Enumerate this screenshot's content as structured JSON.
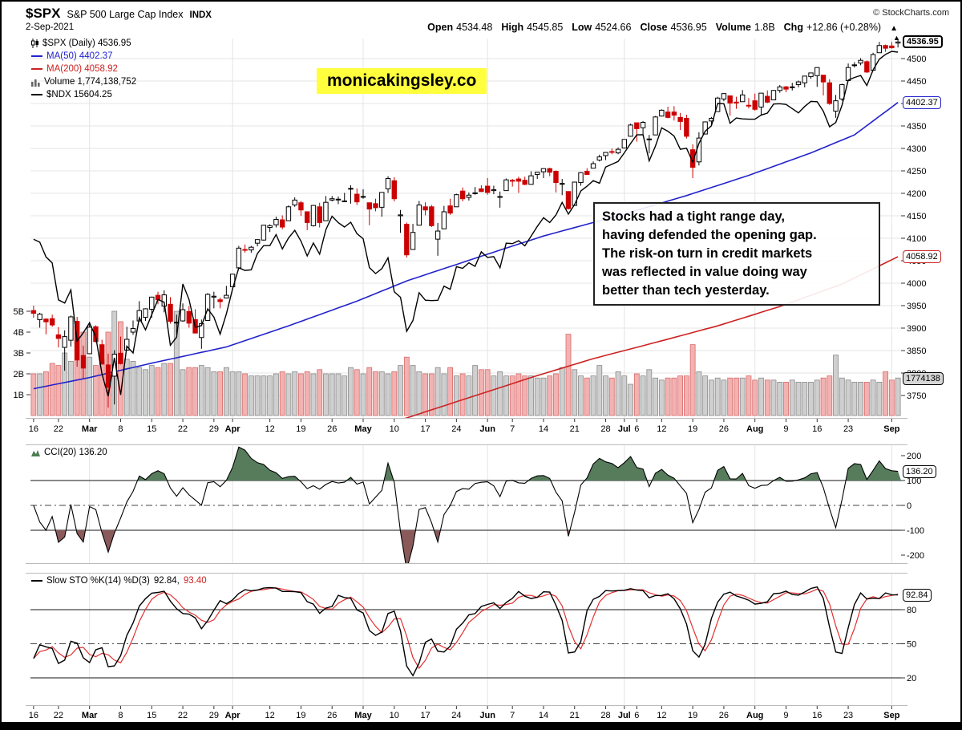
{
  "header": {
    "symbol": "$SPX",
    "symbol_name": "S&P 500 Large Cap Index",
    "exchange": "INDX",
    "copyright": "© StockCharts.com",
    "date": "2-Sep-2021",
    "quote": {
      "open_label": "Open",
      "open": "4534.48",
      "high_label": "High",
      "high": "4545.85",
      "low_label": "Low",
      "low": "4524.66",
      "close_label": "Close",
      "close": "4536.95",
      "volume_label": "Volume",
      "volume": "1.8B",
      "chg_label": "Chg",
      "chg": "+12.86 (+0.28%)",
      "chg_arrow": "▲"
    }
  },
  "watermark": "monicakingsley.co",
  "annotation": {
    "lines": [
      "Stocks had a tight range day,",
      "having defended the opening gap.",
      "The risk-on turn in credit markets",
      "was reflected in value doing way",
      "better than tech yesterday."
    ]
  },
  "main_legend": {
    "spx": "$SPX (Daily) 4536.95",
    "ma50": "MA(50) 4402.37",
    "ma200": "MA(200) 4058.92",
    "volume": "Volume 1,774,138,752",
    "ndx": "$NDX 15604.25"
  },
  "cci_legend": "CCI(20) 136.20",
  "sto_legend": {
    "name": "Slow STO %K(14) %D(3)",
    "k": "92.84,",
    "d": "93.40"
  },
  "price_boxes": {
    "last": "4536.95",
    "ma50": "4402.37",
    "ma200": "4058.92",
    "volume": "1774138",
    "cci": "136.20",
    "sto": "92.84",
    "axis_arrow": "▲"
  },
  "colors": {
    "candle_up_fill": "#ffffff",
    "candle_up_stroke": "#000000",
    "candle_down": "#cc0000",
    "ma50": "#2222cc",
    "ma200": "#cc2222",
    "ndx_line": "#000000",
    "volume_up_fill": "#cfcfcf",
    "volume_up_stroke": "#8a8a8a",
    "volume_down_fill": "#f2b2b2",
    "volume_down_stroke": "#d96a6a",
    "cci_fill_high": "#567c5c",
    "cci_fill_low": "#8a5a5a",
    "cci_line": "#000000",
    "sto_k": "#000000",
    "sto_d": "#e03030",
    "grid": "#e4e4e4",
    "guide": "#444444",
    "watermark_bg": "#ffff3d"
  },
  "chart_data": {
    "type": "candlestick",
    "symbol": "$SPX",
    "timeframe": "Daily",
    "date_range": "16-Feb-2021 to 2-Sep-2021",
    "price_axis_range": [
      3700,
      4546
    ],
    "price_ticks": [
      4500,
      4450,
      4400,
      4350,
      4300,
      4250,
      4200,
      4150,
      4100,
      4050,
      4000,
      3950,
      3900,
      3850,
      3800,
      3750
    ],
    "volume_ticks": [
      5,
      4,
      3,
      2,
      1
    ],
    "cci_ticks": [
      200,
      100,
      0,
      -100,
      -200
    ],
    "cci_lines": {
      "solid": [
        100,
        -100
      ],
      "dashdot": [
        0
      ]
    },
    "sto_ticks": [
      80,
      50,
      20
    ],
    "sto_lines": {
      "solid": [
        80,
        20
      ],
      "dashdot": [
        50
      ]
    },
    "x_ticks": [
      {
        "i": 0,
        "label": "16",
        "bold": false
      },
      {
        "i": 4,
        "label": "22",
        "bold": false
      },
      {
        "i": 9,
        "label": "Mar",
        "bold": true
      },
      {
        "i": 14,
        "label": "8",
        "bold": false
      },
      {
        "i": 19,
        "label": "15",
        "bold": false
      },
      {
        "i": 24,
        "label": "22",
        "bold": false
      },
      {
        "i": 29,
        "label": "29",
        "bold": false
      },
      {
        "i": 32,
        "label": "Apr",
        "bold": true
      },
      {
        "i": 38,
        "label": "12",
        "bold": false
      },
      {
        "i": 43,
        "label": "19",
        "bold": false
      },
      {
        "i": 48,
        "label": "26",
        "bold": false
      },
      {
        "i": 53,
        "label": "May",
        "bold": true
      },
      {
        "i": 58,
        "label": "10",
        "bold": false
      },
      {
        "i": 63,
        "label": "17",
        "bold": false
      },
      {
        "i": 68,
        "label": "24",
        "bold": false
      },
      {
        "i": 73,
        "label": "Jun",
        "bold": true
      },
      {
        "i": 77,
        "label": "7",
        "bold": false
      },
      {
        "i": 82,
        "label": "14",
        "bold": false
      },
      {
        "i": 87,
        "label": "21",
        "bold": false
      },
      {
        "i": 92,
        "label": "28",
        "bold": false
      },
      {
        "i": 95,
        "label": "Jul",
        "bold": true
      },
      {
        "i": 97,
        "label": "6",
        "bold": false
      },
      {
        "i": 101,
        "label": "12",
        "bold": false
      },
      {
        "i": 106,
        "label": "19",
        "bold": false
      },
      {
        "i": 111,
        "label": "26",
        "bold": false
      },
      {
        "i": 116,
        "label": "Aug",
        "bold": true
      },
      {
        "i": 121,
        "label": "9",
        "bold": false
      },
      {
        "i": 126,
        "label": "16",
        "bold": false
      },
      {
        "i": 131,
        "label": "23",
        "bold": false
      },
      {
        "i": 138,
        "label": "Sep",
        "bold": true
      }
    ],
    "ohlc": [
      [
        3939,
        3950,
        3923,
        3933
      ],
      [
        3919,
        3934,
        3901,
        3931
      ],
      [
        3920,
        3922,
        3886,
        3914
      ],
      [
        3921,
        3930,
        3903,
        3907
      ],
      [
        3885,
        3902,
        3857,
        3877
      ],
      [
        3857,
        3895,
        3805,
        3881
      ],
      [
        3873,
        3928,
        3859,
        3925
      ],
      [
        3915,
        3925,
        3814,
        3829
      ],
      [
        3839,
        3861,
        3789,
        3811
      ],
      [
        3843,
        3914,
        3843,
        3902
      ],
      [
        3903,
        3906,
        3868,
        3870
      ],
      [
        3863,
        3874,
        3819,
        3820
      ],
      [
        3818,
        3843,
        3723,
        3768
      ],
      [
        3793,
        3851,
        3730,
        3842
      ],
      [
        3844,
        3881,
        3819,
        3821
      ],
      [
        3851,
        3903,
        3851,
        3875
      ],
      [
        3891,
        3917,
        3885,
        3899
      ],
      [
        3916,
        3960,
        3915,
        3939
      ],
      [
        3924,
        3944,
        3916,
        3943
      ],
      [
        3942,
        3970,
        3923,
        3969
      ],
      [
        3973,
        3981,
        3953,
        3963
      ],
      [
        3949,
        3984,
        3935,
        3974
      ],
      [
        3953,
        3969,
        3910,
        3915
      ],
      [
        3913,
        3930,
        3886,
        3913
      ],
      [
        3916,
        3955,
        3914,
        3941
      ],
      [
        3937,
        3949,
        3901,
        3911
      ],
      [
        3919,
        3942,
        3889,
        3889
      ],
      [
        3879,
        3919,
        3854,
        3910
      ],
      [
        3917,
        3978,
        3917,
        3975
      ],
      [
        3969,
        3981,
        3944,
        3971
      ],
      [
        3963,
        3968,
        3944,
        3959
      ],
      [
        3967,
        3994,
        3967,
        3973
      ],
      [
        3992,
        4020,
        3992,
        4020
      ],
      [
        4034,
        4083,
        4034,
        4078
      ],
      [
        4075,
        4086,
        4068,
        4074
      ],
      [
        4074,
        4083,
        4068,
        4080
      ],
      [
        4089,
        4098,
        4082,
        4097
      ],
      [
        4096,
        4129,
        4095,
        4129
      ],
      [
        4124,
        4131,
        4114,
        4128
      ],
      [
        4130,
        4148,
        4124,
        4142
      ],
      [
        4141,
        4151,
        4120,
        4125
      ],
      [
        4139,
        4173,
        4139,
        4170
      ],
      [
        4174,
        4191,
        4170,
        4185
      ],
      [
        4179,
        4183,
        4150,
        4163
      ],
      [
        4159,
        4159,
        4118,
        4135
      ],
      [
        4128,
        4174,
        4126,
        4173
      ],
      [
        4170,
        4179,
        4124,
        4135
      ],
      [
        4139,
        4194,
        4139,
        4180
      ],
      [
        4185,
        4194,
        4182,
        4188
      ],
      [
        4186,
        4193,
        4176,
        4187
      ],
      [
        4183,
        4201,
        4181,
        4183
      ],
      [
        4211,
        4218,
        4177,
        4211
      ],
      [
        4198,
        4211,
        4174,
        4181
      ],
      [
        4192,
        4209,
        4188,
        4193
      ],
      [
        4179,
        4179,
        4129,
        4165
      ],
      [
        4177,
        4188,
        4160,
        4168
      ],
      [
        4169,
        4202,
        4148,
        4202
      ],
      [
        4210,
        4238,
        4201,
        4233
      ],
      [
        4228,
        4236,
        4182,
        4188
      ],
      [
        4150,
        4163,
        4112,
        4152
      ],
      [
        4131,
        4135,
        4057,
        4063
      ],
      [
        4075,
        4132,
        4075,
        4113
      ],
      [
        4129,
        4183,
        4129,
        4174
      ],
      [
        4170,
        4180,
        4151,
        4163
      ],
      [
        4170,
        4174,
        4125,
        4128
      ],
      [
        4098,
        4134,
        4061,
        4116
      ],
      [
        4121,
        4172,
        4121,
        4159
      ],
      [
        4172,
        4188,
        4152,
        4156
      ],
      [
        4170,
        4199,
        4170,
        4197
      ],
      [
        4205,
        4213,
        4182,
        4188
      ],
      [
        4191,
        4202,
        4184,
        4196
      ],
      [
        4201,
        4214,
        4197,
        4201
      ],
      [
        4210,
        4218,
        4203,
        4204
      ],
      [
        4216,
        4234,
        4197,
        4202
      ],
      [
        4206,
        4217,
        4198,
        4208
      ],
      [
        4191,
        4204,
        4168,
        4193
      ],
      [
        4206,
        4233,
        4206,
        4230
      ],
      [
        4229,
        4232,
        4215,
        4227
      ],
      [
        4232,
        4237,
        4201,
        4227
      ],
      [
        4229,
        4237,
        4218,
        4220
      ],
      [
        4220,
        4249,
        4220,
        4239
      ],
      [
        4242,
        4248,
        4232,
        4247
      ],
      [
        4248,
        4255,
        4234,
        4255
      ],
      [
        4255,
        4257,
        4238,
        4247
      ],
      [
        4249,
        4251,
        4202,
        4224
      ],
      [
        4221,
        4232,
        4196,
        4222
      ],
      [
        4204,
        4204,
        4164,
        4166
      ],
      [
        4173,
        4226,
        4173,
        4225
      ],
      [
        4224,
        4247,
        4217,
        4246
      ],
      [
        4249,
        4256,
        4241,
        4242
      ],
      [
        4256,
        4271,
        4256,
        4266
      ],
      [
        4274,
        4286,
        4271,
        4281
      ],
      [
        4284,
        4292,
        4274,
        4291
      ],
      [
        4293,
        4300,
        4287,
        4292
      ],
      [
        4290,
        4302,
        4287,
        4298
      ],
      [
        4301,
        4320,
        4300,
        4320
      ],
      [
        4327,
        4355,
        4326,
        4352
      ],
      [
        4357,
        4357,
        4315,
        4344
      ],
      [
        4346,
        4361,
        4329,
        4358
      ],
      [
        4321,
        4330,
        4289,
        4321
      ],
      [
        4330,
        4372,
        4330,
        4370
      ],
      [
        4372,
        4387,
        4371,
        4385
      ],
      [
        4381,
        4393,
        4367,
        4369
      ],
      [
        4381,
        4394,
        4362,
        4374
      ],
      [
        4369,
        4379,
        4341,
        4360
      ],
      [
        4367,
        4375,
        4322,
        4327
      ],
      [
        4297,
        4309,
        4234,
        4258
      ],
      [
        4270,
        4336,
        4262,
        4323
      ],
      [
        4332,
        4360,
        4332,
        4359
      ],
      [
        4361,
        4370,
        4351,
        4367
      ],
      [
        4382,
        4415,
        4382,
        4412
      ],
      [
        4410,
        4423,
        4405,
        4422
      ],
      [
        4417,
        4417,
        4373,
        4401
      ],
      [
        4403,
        4415,
        4388,
        4401
      ],
      [
        4404,
        4430,
        4404,
        4419
      ],
      [
        4396,
        4412,
        4389,
        4395
      ],
      [
        4406,
        4422,
        4384,
        4387
      ],
      [
        4392,
        4423,
        4374,
        4423
      ],
      [
        4416,
        4429,
        4401,
        4403
      ],
      [
        4408,
        4430,
        4408,
        4429
      ],
      [
        4429,
        4441,
        4424,
        4437
      ],
      [
        4437,
        4439,
        4425,
        4432
      ],
      [
        4436,
        4446,
        4429,
        4437
      ],
      [
        4442,
        4451,
        4436,
        4448
      ],
      [
        4446,
        4461,
        4436,
        4461
      ],
      [
        4460,
        4468,
        4455,
        4468
      ],
      [
        4462,
        4480,
        4437,
        4480
      ],
      [
        4463,
        4463,
        4418,
        4448
      ],
      [
        4446,
        4454,
        4397,
        4400
      ],
      [
        4383,
        4419,
        4368,
        4406
      ],
      [
        4410,
        4444,
        4406,
        4442
      ],
      [
        4451,
        4489,
        4450,
        4480
      ],
      [
        4485,
        4492,
        4480,
        4486
      ],
      [
        4490,
        4501,
        4485,
        4496
      ],
      [
        4493,
        4496,
        4468,
        4470
      ],
      [
        4474,
        4513,
        4474,
        4509
      ],
      [
        4513,
        4537,
        4513,
        4529
      ],
      [
        4529,
        4531,
        4515,
        4523
      ],
      [
        4528,
        4537,
        4522,
        4524
      ],
      [
        4534.48,
        4545.85,
        4524.66,
        4536.95
      ]
    ],
    "volume_b": [
      2.0,
      2.0,
      2.1,
      2.5,
      2.4,
      3.0,
      2.6,
      3.6,
      4.0,
      2.8,
      2.4,
      2.7,
      4.0,
      5.0,
      4.5,
      2.7,
      2.6,
      2.3,
      2.2,
      2.4,
      2.3,
      2.5,
      2.5,
      5.0,
      2.2,
      2.3,
      2.3,
      2.4,
      2.3,
      2.1,
      2.1,
      2.3,
      2.1,
      2.1,
      2.0,
      1.9,
      1.9,
      1.9,
      1.9,
      2.0,
      2.1,
      2.0,
      2.1,
      2.0,
      2.1,
      2.0,
      2.2,
      2.0,
      2.0,
      2.0,
      1.9,
      2.3,
      2.2,
      2.0,
      2.3,
      2.1,
      2.1,
      2.0,
      2.1,
      2.4,
      2.8,
      2.4,
      2.1,
      2.0,
      2.0,
      2.3,
      2.0,
      2.3,
      1.9,
      2.0,
      1.9,
      2.4,
      2.2,
      2.2,
      1.9,
      2.1,
      1.9,
      1.9,
      2.0,
      1.9,
      1.9,
      1.8,
      1.8,
      1.9,
      2.0,
      2.3,
      3.9,
      2.2,
      1.9,
      1.8,
      1.9,
      2.4,
      1.9,
      1.8,
      2.1,
      1.9,
      1.5,
      2.0,
      1.9,
      2.2,
      1.8,
      1.7,
      1.8,
      1.8,
      1.9,
      1.9,
      3.4,
      2.1,
      1.9,
      1.7,
      1.8,
      1.7,
      1.8,
      1.8,
      1.8,
      1.9,
      1.7,
      1.8,
      1.7,
      1.7,
      1.6,
      1.6,
      1.7,
      1.6,
      1.6,
      1.6,
      1.7,
      1.8,
      1.9,
      2.9,
      1.8,
      1.7,
      1.6,
      1.6,
      1.6,
      1.7,
      1.6,
      2.1,
      1.7,
      1.8
    ],
    "ndx": [
      13807,
      13779,
      13637,
      13580,
      13225,
      13194,
      13320,
      12828,
      12909,
      13004,
      12870,
      12514,
      12299,
      12669,
      12312,
      12780,
      12715,
      13053,
      12937,
      13083,
      13228,
      13203,
      12789,
      12867,
      13378,
      13228,
      12961,
      12978,
      13138,
      13060,
      12896,
      13091,
      13330,
      13533,
      13508,
      13514,
      13670,
      13746,
      13746,
      13852,
      13714,
      13819,
      13893,
      13790,
      13647,
      13771,
      13664,
      13899,
      14028,
      13966,
      13925,
      13971,
      13861,
      13812,
      13535,
      13478,
      13525,
      13629,
      13302,
      13250,
      12923,
      13027,
      13294,
      13222,
      13218,
      13221,
      13357,
      13327,
      13544,
      13528,
      13581,
      13547,
      13687,
      13633,
      13640,
      13533,
      13770,
      13765,
      13793,
      13744,
      13837,
      13930,
      14014,
      13968,
      14040,
      14161,
      14049,
      14141,
      14271,
      14317,
      14370,
      14345,
      14500,
      14528,
      14554,
      14637,
      14727,
      14810,
      14811,
      14560,
      14702,
      14877,
      14845,
      14798,
      14671,
      14681,
      14549,
      14728,
      14845,
      14896,
      15112,
      15109,
      14921,
      14972,
      14963,
      14960,
      14960,
      15000,
      15019,
      15106,
      15109,
      15102,
      15062,
      15021,
      15083,
      15131,
      15128,
      15037,
      14888,
      14928,
      15093,
      15336,
      15361,
      15380,
      15284,
      15433,
      15536,
      15583,
      15612,
      15604
    ],
    "ma50_anchors": [
      [
        0,
        3765
      ],
      [
        9,
        3790
      ],
      [
        19,
        3822
      ],
      [
        31,
        3858
      ],
      [
        41,
        3905
      ],
      [
        52,
        3960
      ],
      [
        60,
        4005
      ],
      [
        72,
        4060
      ],
      [
        82,
        4105
      ],
      [
        94,
        4150
      ],
      [
        105,
        4195
      ],
      [
        115,
        4240
      ],
      [
        125,
        4290
      ],
      [
        132,
        4330
      ],
      [
        139,
        4402.37
      ]
    ],
    "ma200_anchors": [
      [
        50,
        3660
      ],
      [
        60,
        3700
      ],
      [
        70,
        3745
      ],
      [
        80,
        3790
      ],
      [
        90,
        3832
      ],
      [
        100,
        3868
      ],
      [
        110,
        3905
      ],
      [
        120,
        3948
      ],
      [
        130,
        3998
      ],
      [
        139,
        4058.92
      ]
    ],
    "last_values": {
      "close": 4536.95,
      "ma50": 4402.37,
      "ma200": 4058.92,
      "volume_b": 1.774,
      "cci": 136.2,
      "sto_k": 92.84,
      "sto_d": 93.4,
      "ndx": 15604.25
    }
  }
}
